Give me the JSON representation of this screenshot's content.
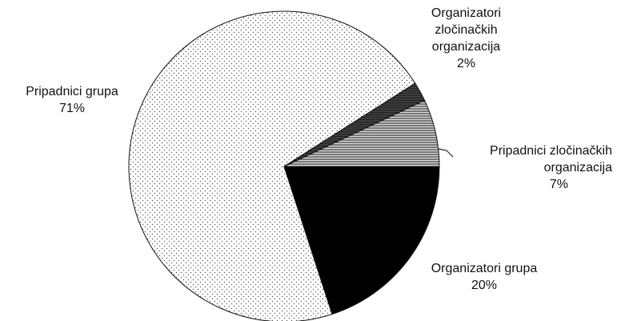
{
  "chart_data": {
    "type": "pie",
    "categories": [
      "Organizatori grupa",
      "Pripadnici grupa",
      "Organizatori zločinačkih organizacija",
      "Pripadnici zločinačkih organizacija"
    ],
    "values": [
      20,
      71,
      2,
      7
    ],
    "value_labels": [
      "20%",
      "71%",
      "2%",
      "7%"
    ]
  }
}
